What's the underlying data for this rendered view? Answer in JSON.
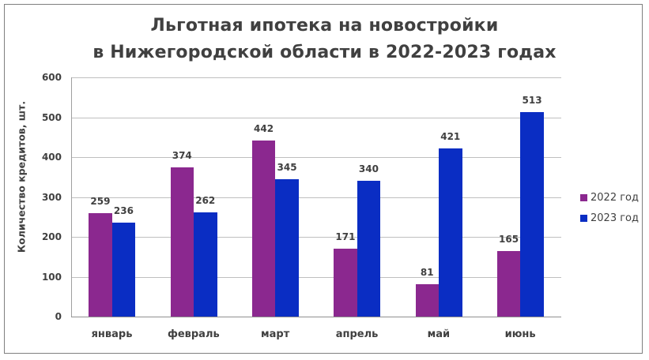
{
  "title": {
    "line1": "Льготная ипотека на новостройки",
    "line2": "в Нижегородской области в 2022-2023 годах"
  },
  "colors": {
    "series_2022": "#8B288F",
    "series_2023": "#0A2DC3"
  },
  "chart_data": {
    "type": "bar",
    "title": "Льготная ипотека на новостройки в Нижегородской области в 2022-2023 годах",
    "xlabel": "",
    "ylabel": "Количество кредитов, шт.",
    "ylim": [
      0,
      600
    ],
    "yticks": [
      0,
      100,
      200,
      300,
      400,
      500,
      600
    ],
    "grid": true,
    "legend_position": "right",
    "categories": [
      "январь",
      "февраль",
      "март",
      "апрель",
      "май",
      "июнь"
    ],
    "series": [
      {
        "name": "2022 год",
        "color": "#8B288F",
        "values": [
          259,
          374,
          442,
          171,
          81,
          165
        ]
      },
      {
        "name": "2023 год",
        "color": "#0A2DC3",
        "values": [
          236,
          262,
          345,
          340,
          421,
          513
        ]
      }
    ]
  }
}
